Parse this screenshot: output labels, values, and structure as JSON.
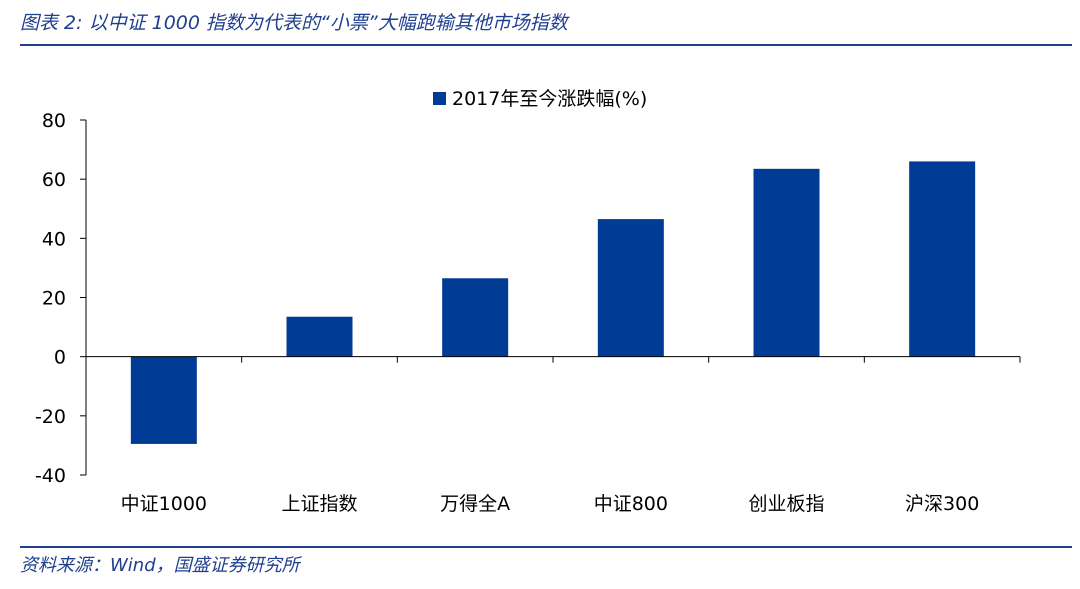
{
  "figure": {
    "title": "图表 2:  以中证 1000 指数为代表的“小票”大幅跑输其他市场指数",
    "source": "资料来源：Wind，国盛证券研究所"
  },
  "colors": {
    "bar": "#003c96",
    "rule": "#1f3f8f",
    "axis": "#000000"
  },
  "chart_data": {
    "type": "bar",
    "categories": [
      "中证1000",
      "上证指数",
      "万得全A",
      "中证800",
      "创业板指",
      "沪深300"
    ],
    "series": [
      {
        "name": "2017年至今涨跌幅(%)",
        "values": [
          -29.5,
          13.5,
          26.5,
          46.5,
          63.5,
          66.0
        ]
      }
    ],
    "ylim": [
      -40,
      80
    ],
    "yticks": [
      -40,
      -20,
      0,
      20,
      40,
      60,
      80
    ],
    "legend_position": "top-center",
    "grid": false,
    "xlabel": "",
    "ylabel": ""
  }
}
